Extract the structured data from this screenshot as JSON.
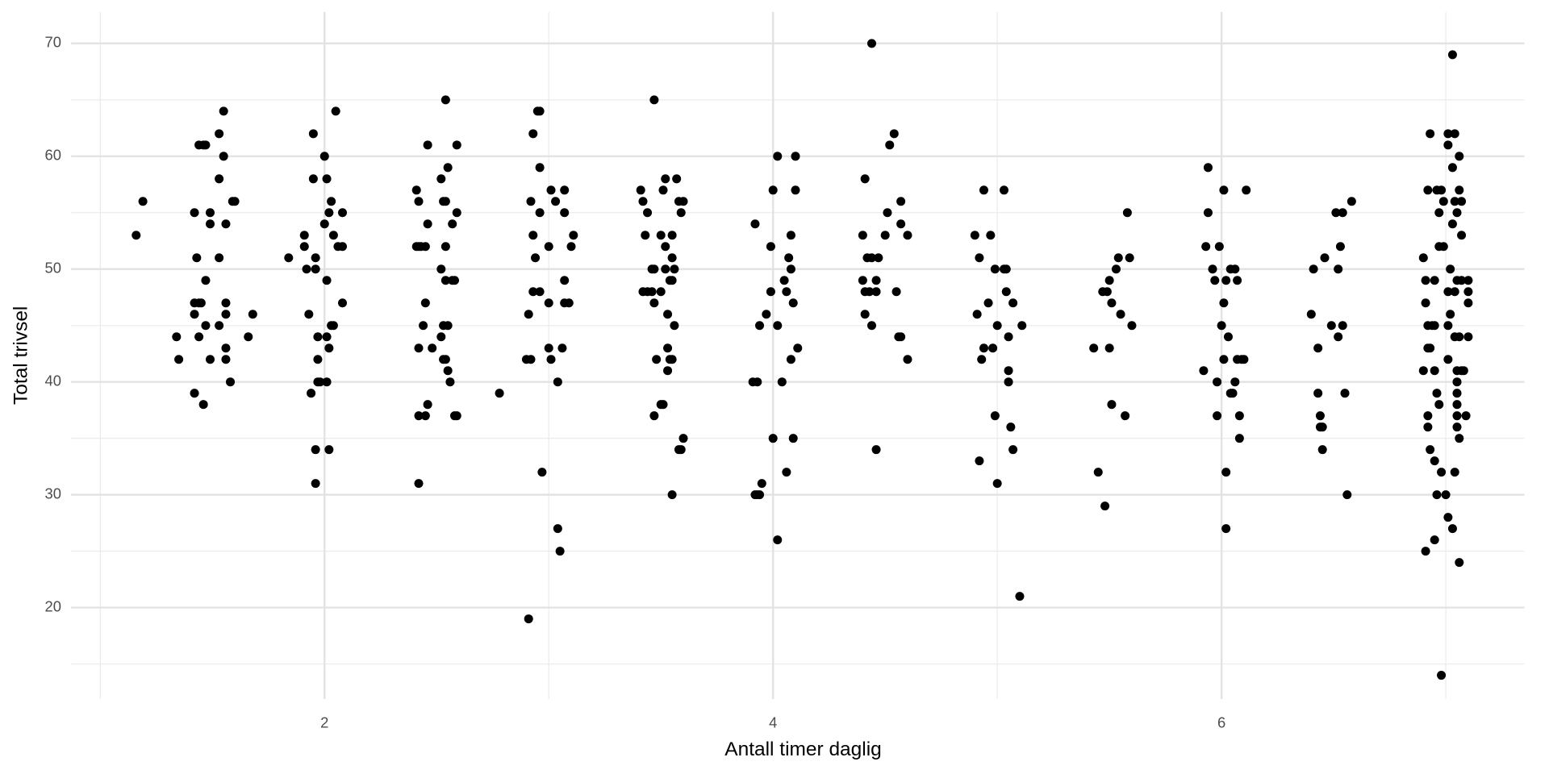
{
  "chart_data": {
    "type": "scatter",
    "x_label": "Antall timer daglig",
    "y_label": "Total trivsel",
    "color": "#000000",
    "xlim": [
      0.87,
      7.35
    ],
    "ylim": [
      11.9,
      72.8
    ],
    "xticks": [
      2,
      4,
      6
    ],
    "yticks": [
      20,
      30,
      40,
      50,
      60,
      70
    ],
    "x_minor_grid": [
      1,
      3,
      5,
      7
    ],
    "y_minor_grid": [
      15,
      25,
      35,
      45,
      55,
      65
    ],
    "grid": true,
    "x": [
      1.16,
      1.19,
      1.34,
      1.35,
      1.42,
      1.46,
      1.42,
      1.42,
      1.44,
      1.45,
      1.43,
      1.42,
      1.44,
      1.46,
      1.47,
      1.47,
      1.47,
      1.49,
      1.49,
      1.49,
      1.44,
      1.53,
      1.55,
      1.53,
      1.53,
      1.53,
      1.55,
      1.56,
      1.56,
      1.56,
      1.56,
      1.56,
      1.58,
      1.59,
      1.6,
      1.66,
      1.68,
      1.84,
      1.91,
      1.91,
      1.92,
      1.93,
      1.94,
      1.95,
      1.95,
      1.96,
      1.96,
      1.96,
      1.96,
      1.97,
      1.97,
      1.97,
      1.98,
      2.0,
      2.0,
      2.01,
      2.01,
      2.01,
      2.01,
      2.02,
      2.02,
      2.02,
      2.03,
      2.03,
      2.04,
      2.04,
      2.05,
      2.06,
      2.08,
      2.08,
      2.08,
      2.41,
      2.42,
      2.41,
      2.42,
      2.43,
      2.45,
      2.42,
      2.44,
      2.45,
      2.46,
      2.46,
      2.42,
      2.42,
      2.45,
      2.46,
      2.48,
      2.52,
      2.52,
      2.52,
      2.53,
      2.53,
      2.54,
      2.53,
      2.54,
      2.54,
      2.55,
      2.54,
      2.54,
      2.55,
      2.55,
      2.56,
      2.57,
      2.57,
      2.58,
      2.58,
      2.59,
      2.59,
      2.59,
      2.78,
      2.9,
      2.92,
      2.91,
      2.92,
      2.93,
      2.93,
      2.91,
      2.93,
      2.94,
      2.95,
      2.96,
      2.96,
      2.96,
      2.96,
      2.97,
      3.0,
      3.01,
      3.0,
      3.0,
      3.01,
      3.03,
      3.04,
      3.04,
      3.05,
      3.06,
      3.07,
      3.07,
      3.07,
      3.07,
      3.09,
      3.1,
      3.11,
      3.41,
      3.42,
      3.43,
      3.44,
      3.42,
      3.44,
      3.46,
      3.46,
      3.47,
      3.47,
      3.47,
      3.47,
      3.48,
      3.5,
      3.51,
      3.5,
      3.5,
      3.51,
      3.52,
      3.52,
      3.52,
      3.53,
      3.53,
      3.53,
      3.54,
      3.55,
      3.54,
      3.55,
      3.55,
      3.55,
      3.56,
      3.56,
      3.57,
      3.58,
      3.59,
      3.58,
      3.59,
      3.6,
      3.6,
      3.55,
      3.92,
      3.91,
      3.93,
      3.92,
      3.93,
      3.94,
      3.94,
      3.95,
      3.97,
      3.99,
      3.99,
      4.0,
      4.0,
      4.02,
      4.02,
      4.02,
      4.04,
      4.05,
      4.06,
      4.06,
      4.07,
      4.08,
      4.08,
      4.08,
      4.09,
      4.09,
      4.1,
      4.1,
      4.11,
      4.41,
      4.4,
      4.4,
      4.41,
      4.41,
      4.42,
      4.43,
      4.44,
      4.44,
      4.44,
      4.46,
      4.46,
      4.46,
      4.47,
      4.5,
      4.51,
      4.52,
      4.54,
      4.55,
      4.56,
      4.57,
      4.57,
      4.57,
      4.6,
      4.6,
      4.9,
      4.91,
      4.92,
      4.92,
      4.93,
      4.94,
      4.94,
      4.96,
      4.97,
      4.98,
      4.99,
      4.99,
      5.0,
      5.0,
      5.03,
      5.03,
      5.04,
      5.04,
      5.05,
      5.05,
      5.05,
      5.06,
      5.07,
      5.07,
      5.1,
      5.11,
      5.43,
      5.45,
      5.47,
      5.48,
      5.49,
      5.5,
      5.5,
      5.51,
      5.51,
      5.53,
      5.54,
      5.55,
      5.57,
      5.58,
      5.59,
      5.6,
      5.92,
      5.94,
      5.93,
      5.94,
      5.96,
      5.97,
      5.98,
      5.98,
      5.99,
      6.0,
      6.01,
      6.01,
      6.01,
      6.02,
      6.02,
      6.02,
      6.03,
      6.04,
      6.04,
      6.05,
      6.06,
      6.06,
      6.07,
      6.07,
      6.08,
      6.08,
      6.09,
      6.1,
      6.11,
      6.4,
      6.41,
      6.43,
      6.43,
      6.44,
      6.44,
      6.45,
      6.45,
      6.46,
      6.49,
      6.51,
      6.52,
      6.52,
      6.53,
      6.54,
      6.54,
      6.55,
      6.56,
      6.58,
      6.91,
      6.9,
      6.9,
      6.91,
      6.91,
      6.92,
      6.92,
      6.92,
      6.92,
      6.92,
      6.93,
      6.93,
      6.93,
      6.94,
      6.95,
      6.95,
      6.95,
      6.95,
      6.95,
      6.96,
      6.96,
      6.96,
      6.97,
      6.97,
      6.97,
      6.98,
      6.98,
      6.98,
      6.99,
      6.99,
      7.0,
      7.01,
      7.01,
      7.01,
      7.01,
      7.01,
      7.01,
      7.02,
      7.02,
      7.03,
      7.03,
      7.03,
      7.03,
      7.04,
      7.04,
      7.04,
      7.04,
      7.04,
      7.05,
      7.05,
      7.05,
      7.05,
      7.05,
      7.05,
      7.05,
      7.05,
      7.06,
      7.06,
      7.06,
      7.06,
      7.06,
      7.07,
      7.07,
      7.07,
      7.07,
      7.08,
      7.09,
      7.1,
      7.1,
      7.1,
      7.1
    ],
    "values": [
      53,
      56,
      44,
      42,
      39,
      38,
      46,
      47,
      47,
      47,
      51,
      55,
      61,
      61,
      61,
      49,
      45,
      55,
      54,
      42,
      44,
      62,
      64,
      58,
      51,
      45,
      60,
      46,
      43,
      42,
      47,
      54,
      40,
      56,
      56,
      44,
      46,
      51,
      53,
      52,
      50,
      46,
      39,
      62,
      58,
      51,
      50,
      34,
      31,
      42,
      40,
      44,
      40,
      54,
      60,
      58,
      49,
      44,
      40,
      43,
      34,
      55,
      56,
      45,
      53,
      45,
      64,
      52,
      52,
      55,
      47,
      57,
      56,
      52,
      52,
      52,
      52,
      43,
      45,
      47,
      61,
      54,
      31,
      37,
      37,
      38,
      43,
      58,
      50,
      44,
      45,
      56,
      56,
      42,
      42,
      65,
      59,
      52,
      49,
      45,
      41,
      40,
      54,
      49,
      49,
      37,
      61,
      55,
      37,
      39,
      42,
      42,
      46,
      56,
      62,
      48,
      19,
      53,
      51,
      64,
      64,
      59,
      55,
      48,
      32,
      52,
      57,
      47,
      43,
      42,
      56,
      40,
      27,
      25,
      43,
      55,
      57,
      47,
      49,
      47,
      52,
      53,
      57,
      56,
      53,
      55,
      48,
      48,
      48,
      50,
      47,
      50,
      37,
      65,
      42,
      38,
      38,
      53,
      48,
      57,
      52,
      50,
      58,
      46,
      41,
      43,
      42,
      42,
      49,
      49,
      51,
      53,
      50,
      45,
      58,
      34,
      34,
      56,
      55,
      56,
      35,
      30,
      54,
      40,
      40,
      30,
      30,
      30,
      45,
      31,
      46,
      52,
      48,
      35,
      57,
      26,
      45,
      60,
      40,
      49,
      48,
      32,
      51,
      53,
      42,
      50,
      35,
      47,
      57,
      60,
      43,
      58,
      53,
      49,
      48,
      46,
      51,
      48,
      70,
      45,
      51,
      48,
      34,
      49,
      51,
      53,
      55,
      61,
      62,
      48,
      44,
      44,
      54,
      56,
      53,
      42,
      53,
      46,
      51,
      33,
      42,
      43,
      57,
      47,
      53,
      43,
      37,
      50,
      45,
      31,
      57,
      50,
      48,
      50,
      41,
      40,
      44,
      36,
      47,
      34,
      21,
      45,
      43,
      32,
      48,
      29,
      48,
      49,
      43,
      47,
      38,
      50,
      51,
      46,
      37,
      55,
      51,
      45,
      41,
      59,
      52,
      55,
      50,
      49,
      37,
      40,
      52,
      45,
      57,
      47,
      42,
      27,
      49,
      32,
      44,
      39,
      50,
      39,
      40,
      50,
      49,
      42,
      35,
      37,
      42,
      42,
      57,
      46,
      50,
      43,
      39,
      37,
      36,
      36,
      34,
      51,
      45,
      55,
      44,
      50,
      52,
      55,
      45,
      39,
      30,
      56,
      25,
      41,
      51,
      49,
      47,
      45,
      43,
      57,
      37,
      36,
      62,
      34,
      43,
      45,
      26,
      41,
      45,
      49,
      33,
      57,
      39,
      30,
      52,
      38,
      55,
      57,
      32,
      14,
      52,
      56,
      30,
      28,
      62,
      48,
      61,
      45,
      42,
      46,
      50,
      27,
      69,
      54,
      59,
      56,
      62,
      48,
      44,
      32,
      41,
      37,
      49,
      38,
      36,
      40,
      55,
      39,
      24,
      60,
      57,
      44,
      35,
      41,
      56,
      49,
      53,
      41,
      37,
      44,
      47,
      48,
      49
    ]
  }
}
